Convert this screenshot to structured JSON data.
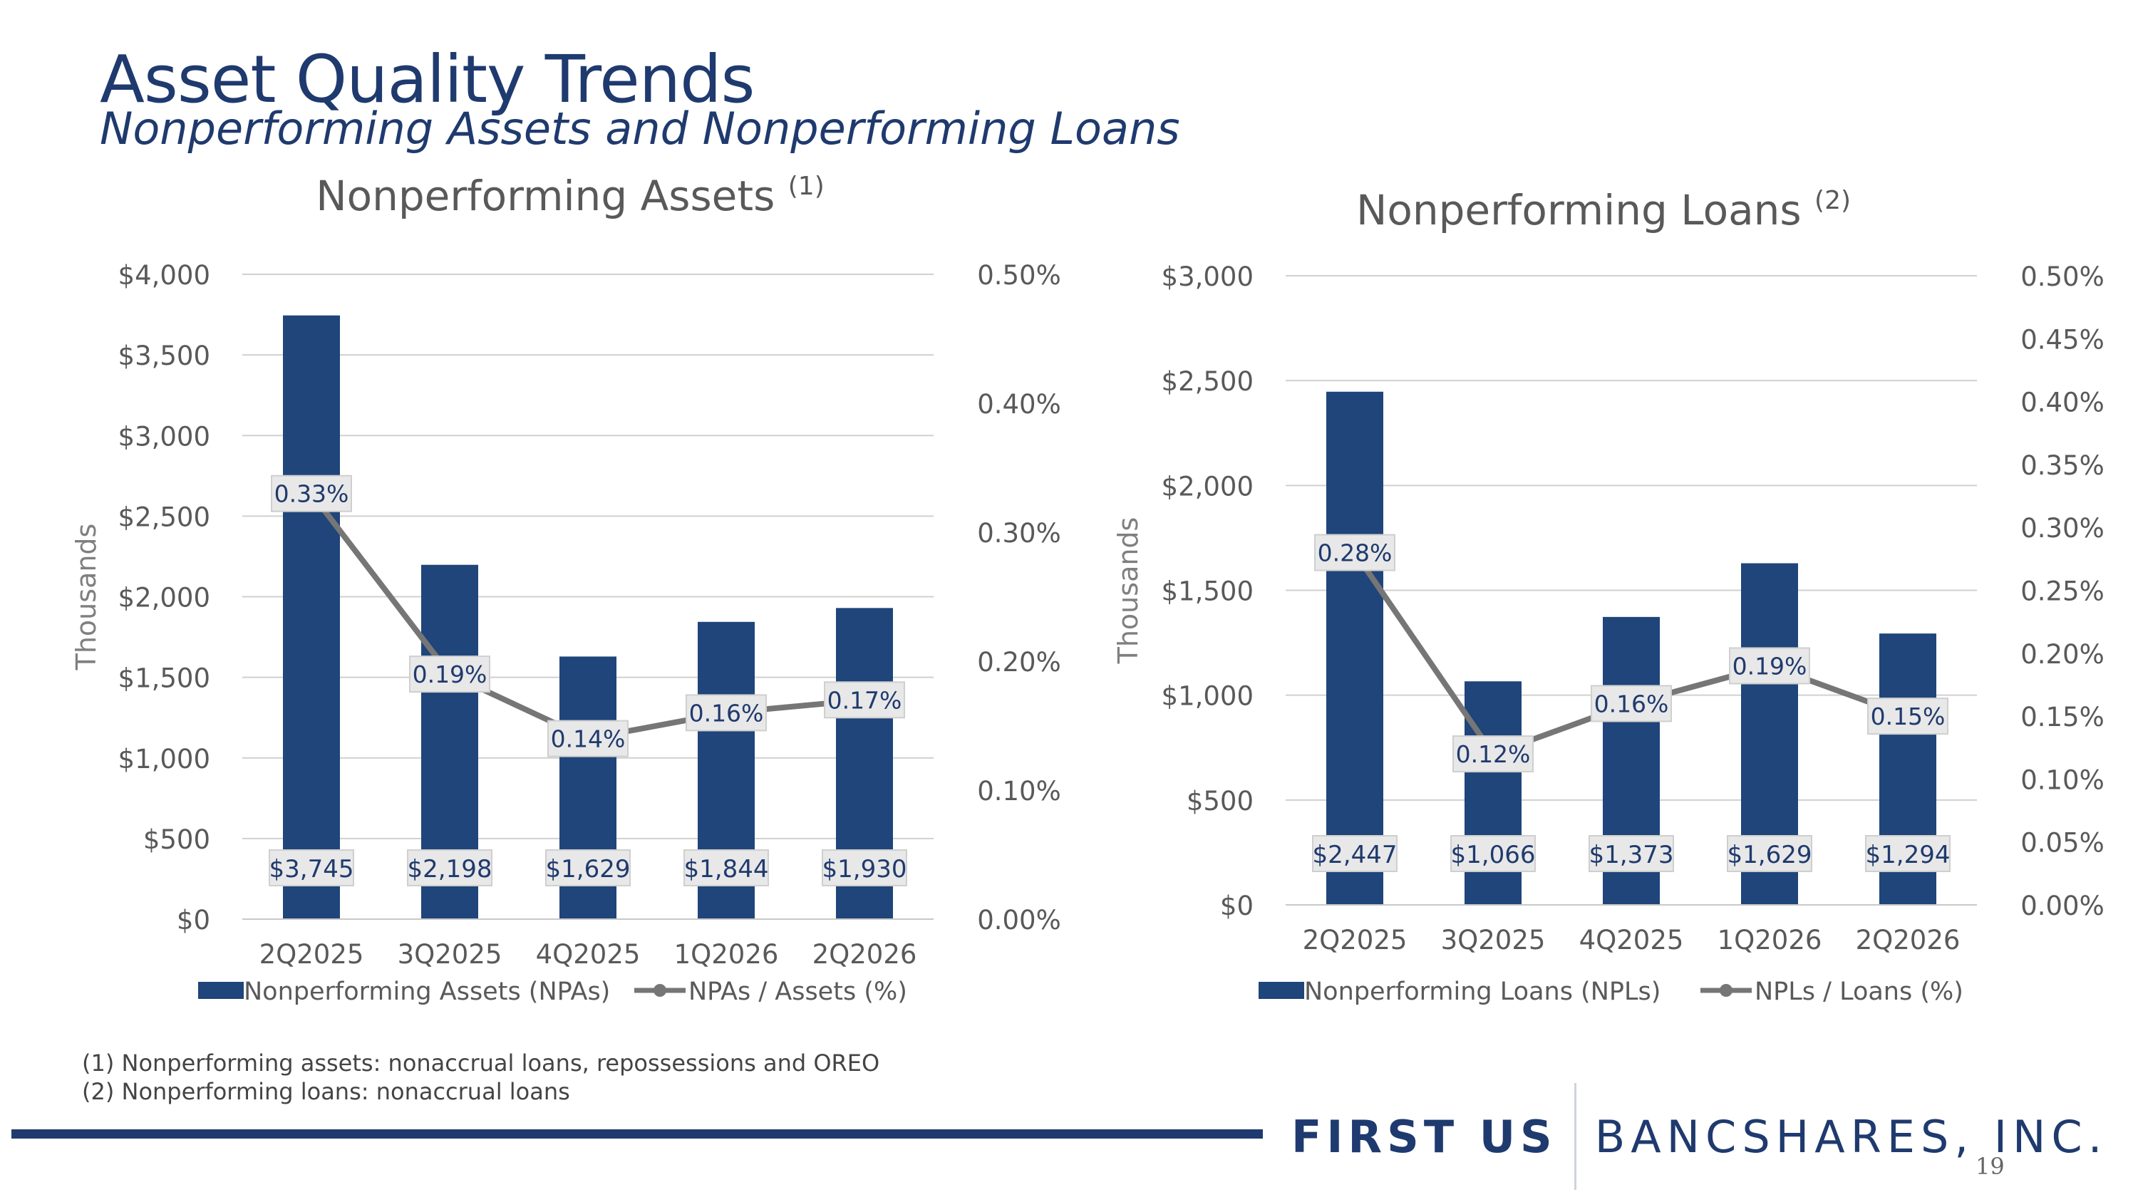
{
  "header": {
    "title": "Asset Quality Trends",
    "subtitle": "Nonperforming Assets and Nonperforming Loans"
  },
  "chart_data": [
    {
      "type": "bar",
      "title": "Nonperforming Assets",
      "title_note": "(1)",
      "categories": [
        "2Q2025",
        "3Q2025",
        "4Q2025",
        "1Q2026",
        "2Q2026"
      ],
      "ylabel": "Thousands",
      "ylim": [
        0,
        4000
      ],
      "y_ticks": [
        "$0",
        "$500",
        "$1,000",
        "$1,500",
        "$2,000",
        "$2,500",
        "$3,000",
        "$3,500",
        "$4,000"
      ],
      "y2lim": [
        0,
        0.5
      ],
      "y2_ticks": [
        "0.00%",
        "0.10%",
        "0.20%",
        "0.30%",
        "0.40%",
        "0.50%"
      ],
      "series": [
        {
          "name": "Nonperforming Assets (NPAs)",
          "type": "bar",
          "values": [
            3745,
            2198,
            1629,
            1844,
            1930
          ],
          "labels": [
            "$3,745",
            "$2,198",
            "$1,629",
            "$1,844",
            "$1,930"
          ]
        },
        {
          "name": "NPAs / Assets (%)",
          "type": "line",
          "axis": "right",
          "values": [
            0.33,
            0.19,
            0.14,
            0.16,
            0.17
          ],
          "labels": [
            "0.33%",
            "0.19%",
            "0.14%",
            "0.16%",
            "0.17%"
          ]
        }
      ],
      "grid": true,
      "legend": "bottom",
      "colors": {
        "bar": "#1f457a",
        "line": "#767676"
      }
    },
    {
      "type": "bar",
      "title": "Nonperforming Loans",
      "title_note": "(2)",
      "categories": [
        "2Q2025",
        "3Q2025",
        "4Q2025",
        "1Q2026",
        "2Q2026"
      ],
      "ylabel": "Thousands",
      "ylim": [
        0,
        3000
      ],
      "y_ticks": [
        "$0",
        "$500",
        "$1,000",
        "$1,500",
        "$2,000",
        "$2,500",
        "$3,000"
      ],
      "y2lim": [
        0,
        0.5
      ],
      "y2_ticks": [
        "0.00%",
        "0.05%",
        "0.10%",
        "0.15%",
        "0.20%",
        "0.25%",
        "0.30%",
        "0.35%",
        "0.40%",
        "0.45%",
        "0.50%"
      ],
      "series": [
        {
          "name": "Nonperforming Loans (NPLs)",
          "type": "bar",
          "values": [
            2447,
            1066,
            1373,
            1629,
            1294
          ],
          "labels": [
            "$2,447",
            "$1,066",
            "$1,373",
            "$1,629",
            "$1,294"
          ]
        },
        {
          "name": "NPLs / Loans (%)",
          "type": "line",
          "axis": "right",
          "values": [
            0.28,
            0.12,
            0.16,
            0.19,
            0.15
          ],
          "labels": [
            "0.28%",
            "0.12%",
            "0.16%",
            "0.19%",
            "0.15%"
          ]
        }
      ],
      "grid": true,
      "legend": "bottom",
      "colors": {
        "bar": "#1f457a",
        "line": "#767676"
      }
    }
  ],
  "footnotes": [
    "(1)  Nonperforming assets: nonaccrual loans, repossessions and OREO",
    "(2)  Nonperforming loans: nonaccrual loans"
  ],
  "logo": {
    "first": "FIRST US",
    "bank": "BANCSHARES, INC."
  },
  "page_number": "19"
}
